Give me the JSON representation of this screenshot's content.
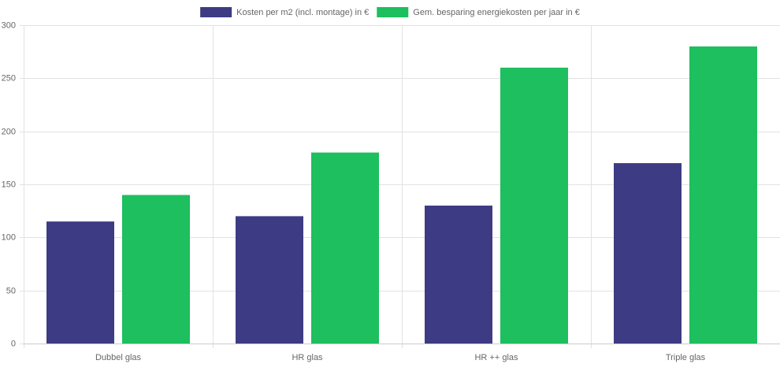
{
  "chart_data": {
    "type": "bar",
    "categories": [
      "Dubbel glas",
      "HR glas",
      "HR ++ glas",
      "Triple glas"
    ],
    "series": [
      {
        "name": "Kosten per m2 (incl. montage) in €",
        "color": "#3c3b84",
        "values": [
          115,
          120,
          130,
          170
        ]
      },
      {
        "name": "Gem. besparing energiekosten per jaar in €",
        "color": "#1dbf5e",
        "values": [
          140,
          180,
          260,
          280
        ]
      }
    ],
    "ylim": [
      0,
      300
    ],
    "yticks": [
      0,
      50,
      100,
      150,
      200,
      250,
      300
    ],
    "grid": true,
    "legend": "top"
  }
}
